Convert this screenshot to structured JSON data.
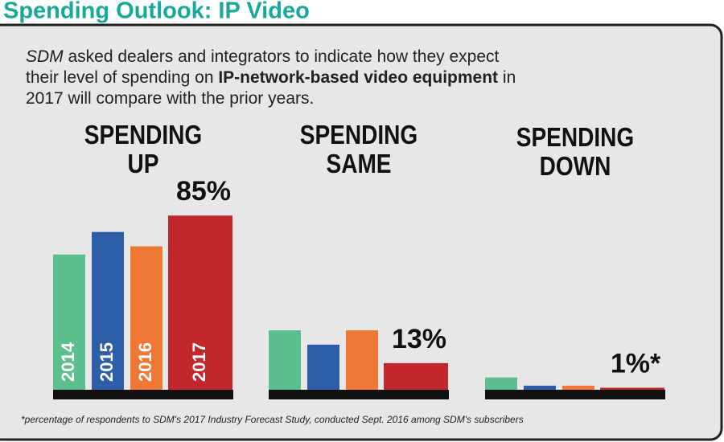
{
  "chart_data": {
    "type": "bar",
    "title": "Spending Outlook: IP Video",
    "subtitle": [
      "SDM",
      " asked dealers and integrators to indicate how they expect their level of spending on ",
      "IP-network-based video equipment",
      " in 2017 will compare with the prior years."
    ],
    "categories": [
      "2014",
      "2015",
      "2016",
      "2017"
    ],
    "colors": [
      "#5cbf8e",
      "#2f5ea9",
      "#ef7836",
      "#c1272d"
    ],
    "series": [
      {
        "name": "SPENDING UP",
        "values": [
          66,
          77,
          70,
          85
        ],
        "value_labels": [
          null,
          null,
          null,
          "85%"
        ]
      },
      {
        "name": "SPENDING SAME",
        "values": [
          29,
          22,
          29,
          13
        ],
        "value_labels": [
          null,
          null,
          null,
          "13%"
        ]
      },
      {
        "name": "SPENDING DOWN",
        "values": [
          6,
          2,
          2,
          1
        ],
        "value_labels": [
          null,
          null,
          null,
          "1%*"
        ]
      }
    ],
    "footnote": "*percentage of respondents to SDM's 2017 Industry Forecast Study, conducted Sept. 2016 among SDM's subscribers"
  }
}
